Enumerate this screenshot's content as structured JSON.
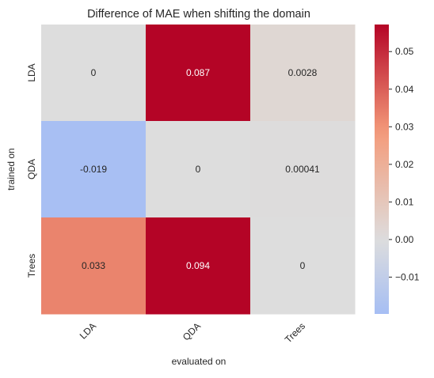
{
  "chart_data": {
    "type": "heatmap",
    "title": "Difference of MAE when shifting the domain",
    "xlabel": "evaluated on",
    "ylabel": "trained on",
    "x_categories": [
      "LDA",
      "QDA",
      "Trees"
    ],
    "y_categories": [
      "LDA",
      "QDA",
      "Trees"
    ],
    "values": [
      [
        0,
        0.087,
        0.0028
      ],
      [
        -0.019,
        0,
        0.00041
      ],
      [
        0.033,
        0.094,
        0
      ]
    ],
    "annotations": [
      [
        "0",
        "0.087",
        "0.0028"
      ],
      [
        "-0.019",
        "0",
        "0.00041"
      ],
      [
        "0.033",
        "0.094",
        "0"
      ]
    ],
    "colormap": "coolwarm",
    "center": 0,
    "colorbar": {
      "vmin": -0.0198,
      "vmax": 0.0572,
      "ticks": [
        -0.01,
        0.0,
        0.01,
        0.02,
        0.03,
        0.04,
        0.05
      ],
      "tick_labels": [
        "−0.01",
        "0.00",
        "0.01",
        "0.02",
        "0.03",
        "0.04",
        "0.05"
      ]
    }
  }
}
